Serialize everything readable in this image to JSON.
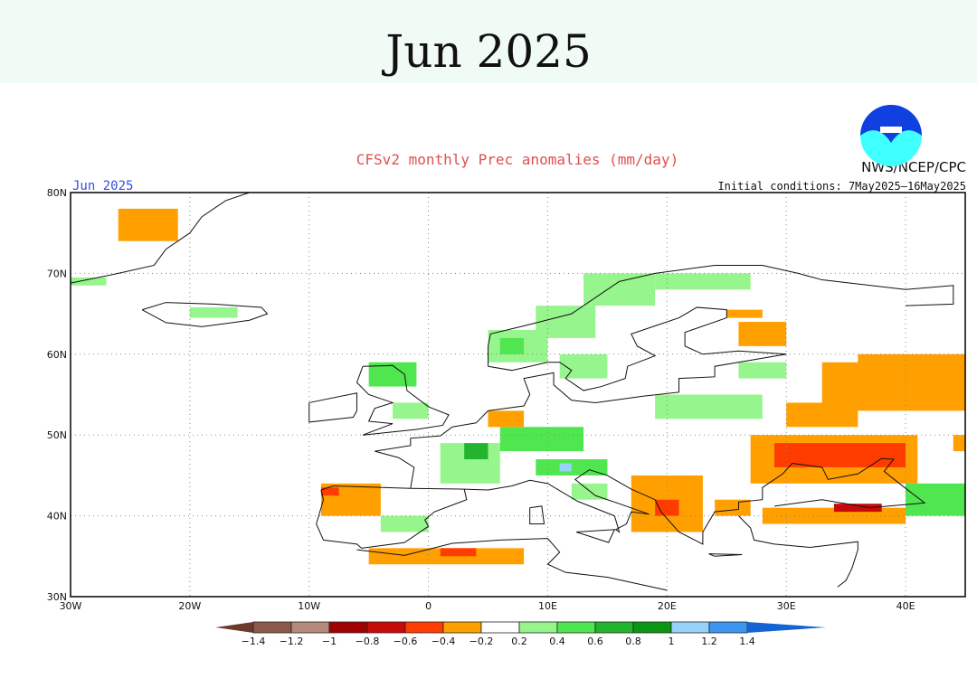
{
  "page_title": "Jun 2025",
  "figure": {
    "title": "CFSv2 monthly Prec anomalies (mm/day)",
    "month_label": "Jun 2025",
    "agency": "NWS/NCEP/CPC",
    "initial_conditions": "Initial conditions: 7May2025–16May2025",
    "logo_text": "NOAA",
    "title_color": "#e05050",
    "month_label_color": "#3050e0"
  },
  "map_data": {
    "lon_range": [
      -30,
      45
    ],
    "lat_range": [
      30,
      80
    ],
    "lon_ticks": [
      {
        "v": -30,
        "label": "30W"
      },
      {
        "v": -20,
        "label": "20W"
      },
      {
        "v": -10,
        "label": "10W"
      },
      {
        "v": 0,
        "label": "0"
      },
      {
        "v": 10,
        "label": "10E"
      },
      {
        "v": 20,
        "label": "20E"
      },
      {
        "v": 30,
        "label": "30E"
      },
      {
        "v": 40,
        "label": "40E"
      }
    ],
    "lat_ticks": [
      {
        "v": 30,
        "label": "30N"
      },
      {
        "v": 40,
        "label": "40N"
      },
      {
        "v": 50,
        "label": "50N"
      },
      {
        "v": 60,
        "label": "60N"
      },
      {
        "v": 70,
        "label": "70N"
      },
      {
        "v": 80,
        "label": "80N"
      }
    ],
    "grid": "dotted",
    "anomaly_cells_mm_per_day": [
      {
        "lon": [
          -26,
          -21
        ],
        "lat": [
          74,
          78
        ],
        "value": -0.3
      },
      {
        "lon": [
          -30,
          -27
        ],
        "lat": [
          68.5,
          69.5
        ],
        "value": 0.3
      },
      {
        "lon": [
          -20,
          -16
        ],
        "lat": [
          64.5,
          65.8
        ],
        "value": 0.3
      },
      {
        "lon": [
          5,
          10
        ],
        "lat": [
          59,
          63
        ],
        "value": 0.3
      },
      {
        "lon": [
          6,
          8
        ],
        "lat": [
          60,
          62
        ],
        "value": 0.5
      },
      {
        "lon": [
          9,
          14
        ],
        "lat": [
          62,
          66
        ],
        "value": 0.3
      },
      {
        "lon": [
          13,
          19
        ],
        "lat": [
          66,
          70
        ],
        "value": 0.3
      },
      {
        "lon": [
          19,
          27
        ],
        "lat": [
          68,
          70
        ],
        "value": 0.3
      },
      {
        "lon": [
          11,
          15
        ],
        "lat": [
          57,
          60
        ],
        "value": 0.3
      },
      {
        "lon": [
          26,
          30
        ],
        "lat": [
          61,
          64
        ],
        "value": -0.3
      },
      {
        "lon": [
          25,
          28
        ],
        "lat": [
          64.5,
          65.5
        ],
        "value": -0.3
      },
      {
        "lon": [
          33,
          45
        ],
        "lat": [
          53,
          59
        ],
        "value": -0.3
      },
      {
        "lon": [
          36,
          45
        ],
        "lat": [
          58,
          60
        ],
        "value": -0.3
      },
      {
        "lon": [
          30,
          36
        ],
        "lat": [
          51,
          54
        ],
        "value": -0.3
      },
      {
        "lon": [
          27,
          41
        ],
        "lat": [
          44,
          50
        ],
        "value": -0.3
      },
      {
        "lon": [
          29,
          40
        ],
        "lat": [
          46,
          49
        ],
        "value": -0.6
      },
      {
        "lon": [
          28,
          40
        ],
        "lat": [
          39,
          41
        ],
        "value": -0.3
      },
      {
        "lon": [
          34,
          38
        ],
        "lat": [
          40.5,
          41.5
        ],
        "value": -0.8
      },
      {
        "lon": [
          17,
          23
        ],
        "lat": [
          38,
          45
        ],
        "value": -0.3
      },
      {
        "lon": [
          19,
          21
        ],
        "lat": [
          40,
          42
        ],
        "value": -0.5
      },
      {
        "lon": [
          24,
          27
        ],
        "lat": [
          40,
          42
        ],
        "value": -0.3
      },
      {
        "lon": [
          9,
          15
        ],
        "lat": [
          45,
          47
        ],
        "value": 0.5
      },
      {
        "lon": [
          11,
          12
        ],
        "lat": [
          45.5,
          46.5
        ],
        "value": 1.1
      },
      {
        "lon": [
          1,
          6
        ],
        "lat": [
          44,
          49
        ],
        "value": 0.3
      },
      {
        "lon": [
          3,
          5
        ],
        "lat": [
          47,
          49
        ],
        "value": 0.6
      },
      {
        "lon": [
          6,
          13
        ],
        "lat": [
          48,
          51
        ],
        "value": 0.4
      },
      {
        "lon": [
          12,
          15
        ],
        "lat": [
          42,
          44
        ],
        "value": 0.3
      },
      {
        "lon": [
          -5,
          -1
        ],
        "lat": [
          56,
          59
        ],
        "value": 0.4
      },
      {
        "lon": [
          -3,
          0
        ],
        "lat": [
          52,
          54
        ],
        "value": 0.3
      },
      {
        "lon": [
          -9,
          -4
        ],
        "lat": [
          40,
          44
        ],
        "value": -0.3
      },
      {
        "lon": [
          -9,
          -7.5
        ],
        "lat": [
          42.5,
          43.5
        ],
        "value": -0.6
      },
      {
        "lon": [
          -5,
          8
        ],
        "lat": [
          34,
          36
        ],
        "value": -0.3
      },
      {
        "lon": [
          1,
          4
        ],
        "lat": [
          35,
          36
        ],
        "value": -0.6
      },
      {
        "lon": [
          -4,
          0
        ],
        "lat": [
          38,
          40
        ],
        "value": 0.2
      },
      {
        "lon": [
          40,
          45
        ],
        "lat": [
          40,
          44
        ],
        "value": 0.4
      },
      {
        "lon": [
          19,
          28
        ],
        "lat": [
          52,
          55
        ],
        "value": 0.2
      },
      {
        "lon": [
          26,
          30
        ],
        "lat": [
          57,
          59
        ],
        "value": 0.3
      },
      {
        "lon": [
          5,
          8
        ],
        "lat": [
          51,
          53
        ],
        "value": -0.3
      },
      {
        "lon": [
          44,
          45
        ],
        "lat": [
          48,
          50
        ],
        "value": -0.3
      }
    ]
  },
  "colorbar": {
    "labels": [
      "−1.4",
      "−1.2",
      "−1",
      "−0.8",
      "−0.6",
      "−0.4",
      "−0.2",
      "0.2",
      "0.4",
      "0.6",
      "0.8",
      "1",
      "1.2",
      "1.4"
    ],
    "bounds": [
      -1.4,
      -1.2,
      -1,
      -0.8,
      -0.6,
      -0.4,
      -0.2,
      0.2,
      0.4,
      0.6,
      0.8,
      1,
      1.2,
      1.4
    ],
    "colors": [
      "#6b3a2a",
      "#8c5a4c",
      "#b58a7c",
      "#a00000",
      "#c80a0a",
      "#ff3c00",
      "#ffa000",
      "#ffffff",
      "#96f58c",
      "#50e650",
      "#23b42d",
      "#0a9614",
      "#96d2fa",
      "#3c96f0",
      "#1464d2"
    ]
  }
}
